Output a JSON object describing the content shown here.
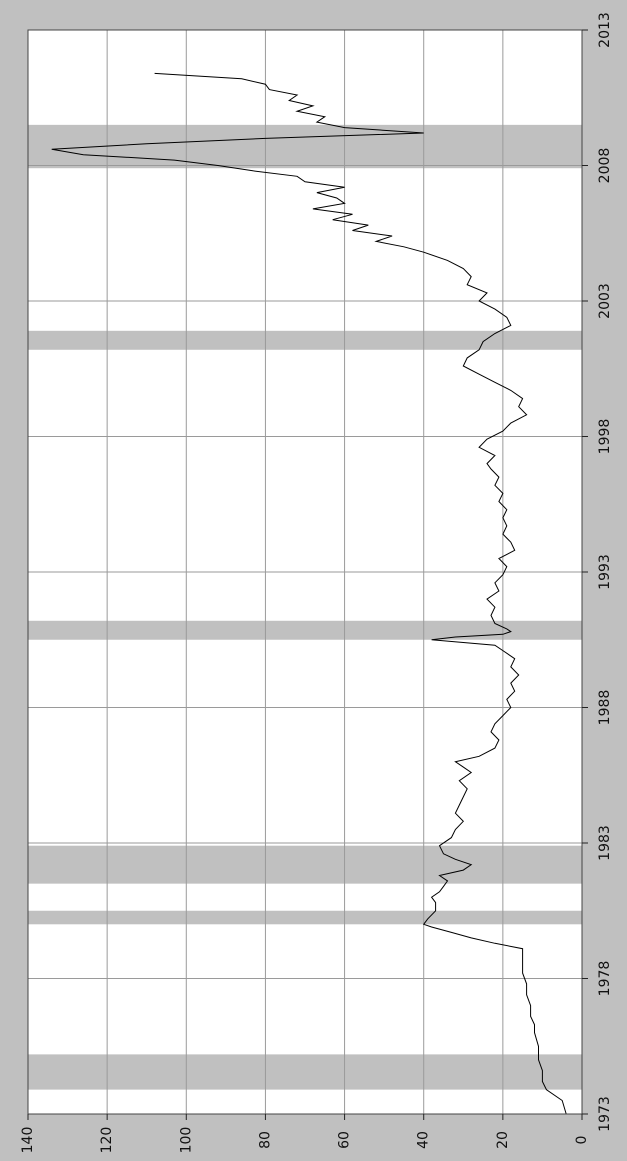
{
  "chart_data": {
    "type": "line",
    "orientation": "rotated-90-clockwise",
    "title": "",
    "xlabel": "",
    "ylabel": "",
    "xlim": [
      1973,
      2013
    ],
    "ylim": [
      0,
      140
    ],
    "x_ticks": [
      "1973",
      "1978",
      "1983",
      "1988",
      "1993",
      "1998",
      "2003",
      "2008",
      "2013"
    ],
    "y_ticks": [
      "0",
      "20",
      "40",
      "60",
      "80",
      "100",
      "120",
      "140"
    ],
    "grid": true,
    "legend": "none",
    "line_color": "#000000",
    "band_color": "#c0c0c0",
    "shaded_periods": [
      {
        "start": 1973.9,
        "end": 1975.2
      },
      {
        "start": 1980.0,
        "end": 1980.5
      },
      {
        "start": 1981.5,
        "end": 1982.9
      },
      {
        "start": 1990.5,
        "end": 1991.2
      },
      {
        "start": 2001.2,
        "end": 2001.9
      },
      {
        "start": 2007.9,
        "end": 2009.5
      }
    ],
    "series": [
      {
        "x": [
          1973.0,
          1973.5,
          1973.9,
          1974.2,
          1974.6,
          1975.0,
          1975.5,
          1976.0,
          1976.3,
          1976.6,
          1977.0,
          1977.4,
          1977.8,
          1978.2,
          1978.6,
          1978.9,
          1979.1,
          1979.3,
          1979.5,
          1979.7,
          1979.9,
          1980.0,
          1980.2,
          1980.5,
          1980.8,
          1981.0,
          1981.2,
          1981.4,
          1981.6,
          1981.8,
          1982.0,
          1982.2,
          1982.4,
          1982.6,
          1982.9,
          1983.2,
          1983.5,
          1983.8,
          1984.1,
          1984.4,
          1984.7,
          1985.0,
          1985.3,
          1985.6,
          1985.8,
          1986.0,
          1986.2,
          1986.5,
          1986.8,
          1987.1,
          1987.4,
          1987.7,
          1988.0,
          1988.3,
          1988.6,
          1988.9,
          1989.2,
          1989.5,
          1989.8,
          1990.1,
          1990.3,
          1990.5,
          1990.6,
          1990.7,
          1990.8,
          1990.9,
          1991.1,
          1991.4,
          1991.7,
          1992.0,
          1992.3,
          1992.6,
          1992.9,
          1993.2,
          1993.5,
          1993.8,
          1994.1,
          1994.4,
          1994.7,
          1995.0,
          1995.3,
          1995.6,
          1995.9,
          1996.2,
          1996.5,
          1996.8,
          1997.0,
          1997.3,
          1997.6,
          1997.9,
          1998.2,
          1998.5,
          1998.8,
          1999.1,
          1999.4,
          1999.7,
          2000.0,
          2000.3,
          2000.6,
          2000.9,
          2001.2,
          2001.5,
          2001.8,
          2002.1,
          2002.4,
          2002.7,
          2003.0,
          2003.3,
          2003.6,
          2003.9,
          2004.2,
          2004.5,
          2004.8,
          2005.0,
          2005.2,
          2005.4,
          2005.6,
          2005.8,
          2006.0,
          2006.2,
          2006.4,
          2006.6,
          2006.8,
          2007.0,
          2007.2,
          2007.4,
          2007.6,
          2007.8,
          2008.0,
          2008.2,
          2008.4,
          2008.6,
          2008.8,
          2009.0,
          2009.2,
          2009.4,
          2009.6,
          2009.8,
          2010.0,
          2010.2,
          2010.4,
          2010.6,
          2010.8,
          2011.0,
          2011.2,
          2011.4
        ],
        "y": [
          4,
          5,
          9,
          10,
          10,
          11,
          11,
          12,
          12,
          13,
          13,
          14,
          14,
          15,
          15,
          15,
          15,
          22,
          28,
          33,
          38,
          40,
          39,
          37,
          37,
          38,
          36,
          35,
          34,
          36,
          30,
          28,
          32,
          35,
          36,
          33,
          32,
          30,
          32,
          31,
          30,
          29,
          31,
          28,
          30,
          32,
          26,
          22,
          21,
          23,
          22,
          20,
          18,
          19,
          17,
          18,
          16,
          18,
          17,
          20,
          22,
          38,
          32,
          20,
          18,
          19,
          22,
          23,
          22,
          24,
          21,
          22,
          20,
          19,
          21,
          17,
          18,
          20,
          19,
          20,
          19,
          21,
          20,
          22,
          21,
          23,
          24,
          22,
          26,
          24,
          20,
          18,
          14,
          16,
          15,
          18,
          22,
          26,
          30,
          29,
          26,
          25,
          22,
          18,
          19,
          22,
          26,
          24,
          29,
          28,
          30,
          34,
          40,
          45,
          52,
          48,
          58,
          54,
          63,
          58,
          68,
          60,
          62,
          67,
          60,
          70,
          72,
          83,
          92,
          103,
          126,
          134,
          110,
          80,
          40,
          60,
          67,
          65,
          72,
          68,
          74,
          72,
          79,
          80,
          86,
          108
        ]
      }
    ]
  }
}
